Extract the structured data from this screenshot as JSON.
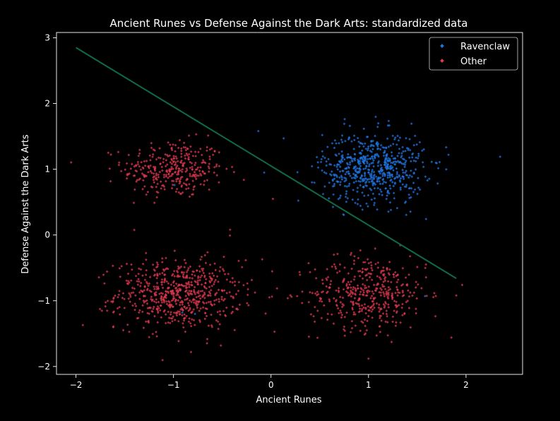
{
  "chart_data": {
    "type": "scatter",
    "title": "Ancient Runes vs Defense Against the Dark Arts: standardized data",
    "xlabel": "Ancient Runes",
    "ylabel": "Defense Against the Dark Arts",
    "xlim": [
      -2.2,
      2.58
    ],
    "ylim": [
      -2.12,
      3.08
    ],
    "xticks": [
      -2,
      -1,
      0,
      1,
      2
    ],
    "yticks": [
      -2,
      -1,
      0,
      1,
      2,
      3
    ],
    "xtick_labels": [
      "−2",
      "−1",
      "0",
      "1",
      "2"
    ],
    "ytick_labels": [
      "−2",
      "−1",
      "0",
      "1",
      "2",
      "3"
    ],
    "grid": false,
    "legend_position": "top-right",
    "background": "#000000",
    "series": [
      {
        "name": "Ravenclaw",
        "color": "#1f77e4",
        "clusters": [
          {
            "cx": 1.05,
            "cy": 1.02,
            "sx": 0.26,
            "sy": 0.27,
            "n": 600
          }
        ],
        "outliers": [
          {
            "x": 2.35,
            "y": 1.19
          },
          {
            "x": -0.13,
            "y": 1.58
          },
          {
            "x": 0.13,
            "y": 1.47
          },
          {
            "x": -0.99,
            "y": 0.76
          },
          {
            "x": -0.91,
            "y": -1.18
          },
          {
            "x": -0.78,
            "y": -1.2
          },
          {
            "x": -0.07,
            "y": 0.95
          },
          {
            "x": 1.82,
            "y": 1.22
          },
          {
            "x": 1.58,
            "y": -0.93
          },
          {
            "x": 0.42,
            "y": 0.8
          }
        ]
      },
      {
        "name": "Other",
        "color": "#e0394f",
        "clusters": [
          {
            "cx": -1.0,
            "cy": 1.0,
            "sx": 0.26,
            "sy": 0.22,
            "n": 330
          },
          {
            "cx": -0.95,
            "cy": -0.9,
            "sx": 0.32,
            "sy": 0.26,
            "n": 620
          },
          {
            "cx": 1.0,
            "cy": -0.88,
            "sx": 0.3,
            "sy": 0.28,
            "n": 420
          }
        ],
        "outliers": [
          {
            "x": -1.93,
            "y": -1.37
          },
          {
            "x": 1.9,
            "y": -0.92
          },
          {
            "x": 0.02,
            "y": 0.55
          },
          {
            "x": -0.09,
            "y": -0.37
          },
          {
            "x": 1.85,
            "y": -1.56
          },
          {
            "x": -0.82,
            "y": -1.78
          },
          {
            "x": 1.0,
            "y": -1.88
          },
          {
            "x": -0.42,
            "y": 0.08
          }
        ]
      }
    ],
    "decision_line": {
      "color": "#0e6b45",
      "points": [
        {
          "x": -2.0,
          "y": 2.85
        },
        {
          "x": 1.9,
          "y": -0.66
        }
      ]
    }
  }
}
